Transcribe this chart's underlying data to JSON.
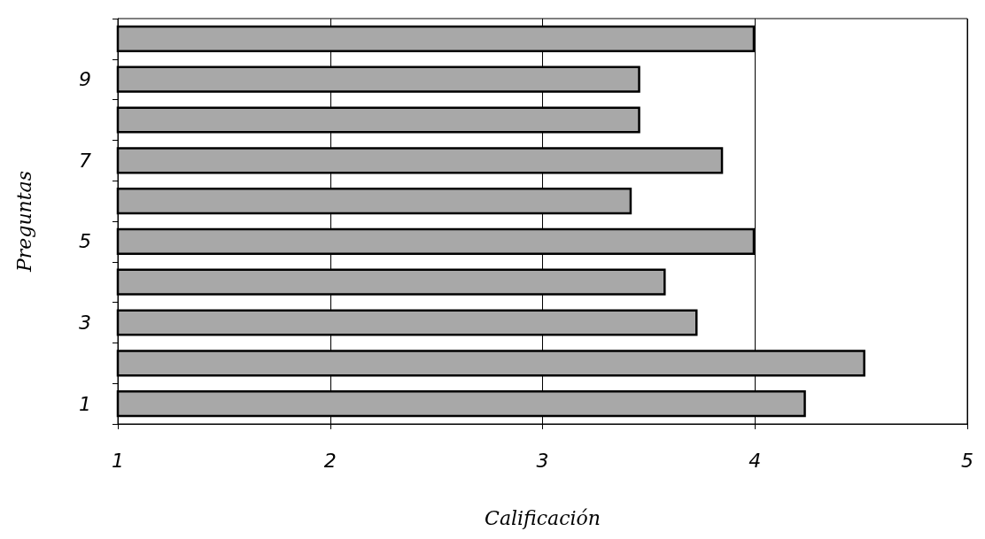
{
  "chart_data": {
    "type": "bar",
    "orientation": "horizontal",
    "xlabel": "Calificación",
    "ylabel": "Preguntas",
    "categories": [
      null,
      "9",
      null,
      "7",
      null,
      "5",
      null,
      "3",
      null,
      "1"
    ],
    "values": [
      4.0,
      3.46,
      3.46,
      3.85,
      3.42,
      4.0,
      3.58,
      3.73,
      4.52,
      4.24
    ],
    "color": "#a8a8a8",
    "xlim": [
      1,
      5
    ],
    "xticks": [
      1,
      2,
      3,
      4,
      5
    ],
    "grid": "x"
  }
}
